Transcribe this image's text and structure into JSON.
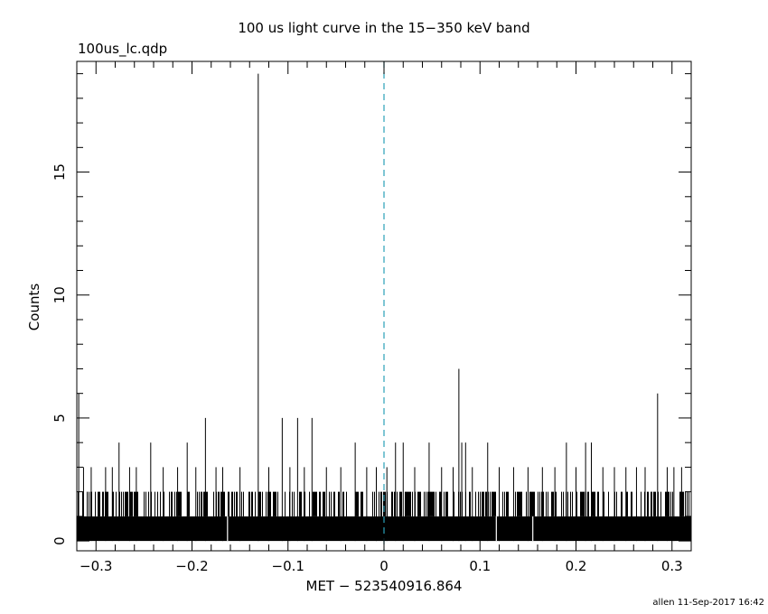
{
  "header": {
    "title": "100 us light curve in the 15−350 keV band",
    "file_label": "100us_lc.qdp"
  },
  "footer": {
    "stamp": "allen 11-Sep-2017 16:42"
  },
  "chart_data": {
    "type": "line",
    "title": "100 us light curve in the 15−350 keV band",
    "xlabel": "MET − 523540916.864",
    "ylabel": "Counts",
    "xlim": [
      -0.32,
      0.32
    ],
    "ylim": [
      -0.4,
      19.5
    ],
    "x_ticks": [
      -0.3,
      -0.2,
      -0.1,
      0,
      0.1,
      0.2,
      0.3
    ],
    "x_tick_labels": [
      "−0.3",
      "−0.2",
      "−0.1",
      "0",
      "0.1",
      "0.2",
      "0.3"
    ],
    "y_ticks": [
      0,
      5,
      10,
      15
    ],
    "y_tick_labels": [
      "0",
      "5",
      "10",
      "15"
    ],
    "bin_width": 0.0001,
    "reference_line": {
      "x": 0,
      "style": "dashed",
      "color": "#2aa0b8"
    },
    "series": [
      {
        "values_description_free": true,
        "baseline": [
          0,
          1
        ],
        "peaks": [
          {
            "x": -0.318,
            "y": 6
          },
          {
            "x": -0.313,
            "y": 3
          },
          {
            "x": -0.305,
            "y": 3
          },
          {
            "x": -0.29,
            "y": 3
          },
          {
            "x": -0.283,
            "y": 3
          },
          {
            "x": -0.276,
            "y": 4
          },
          {
            "x": -0.265,
            "y": 3
          },
          {
            "x": -0.258,
            "y": 3
          },
          {
            "x": -0.243,
            "y": 4
          },
          {
            "x": -0.23,
            "y": 3
          },
          {
            "x": -0.215,
            "y": 3
          },
          {
            "x": -0.205,
            "y": 4
          },
          {
            "x": -0.196,
            "y": 3
          },
          {
            "x": -0.186,
            "y": 5
          },
          {
            "x": -0.175,
            "y": 3
          },
          {
            "x": -0.168,
            "y": 3
          },
          {
            "x": -0.15,
            "y": 3
          },
          {
            "x": -0.131,
            "y": 19
          },
          {
            "x": -0.12,
            "y": 3
          },
          {
            "x": -0.106,
            "y": 5
          },
          {
            "x": -0.098,
            "y": 3
          },
          {
            "x": -0.09,
            "y": 5
          },
          {
            "x": -0.083,
            "y": 3
          },
          {
            "x": -0.075,
            "y": 5
          },
          {
            "x": -0.06,
            "y": 3
          },
          {
            "x": -0.045,
            "y": 3
          },
          {
            "x": -0.03,
            "y": 4
          },
          {
            "x": -0.018,
            "y": 3
          },
          {
            "x": -0.008,
            "y": 3
          },
          {
            "x": 0.003,
            "y": 3
          },
          {
            "x": 0.012,
            "y": 4
          },
          {
            "x": 0.02,
            "y": 4
          },
          {
            "x": 0.032,
            "y": 3
          },
          {
            "x": 0.047,
            "y": 4
          },
          {
            "x": 0.06,
            "y": 3
          },
          {
            "x": 0.072,
            "y": 3
          },
          {
            "x": 0.078,
            "y": 7
          },
          {
            "x": 0.081,
            "y": 4
          },
          {
            "x": 0.085,
            "y": 4
          },
          {
            "x": 0.092,
            "y": 3
          },
          {
            "x": 0.108,
            "y": 4
          },
          {
            "x": 0.12,
            "y": 3
          },
          {
            "x": 0.135,
            "y": 3
          },
          {
            "x": 0.15,
            "y": 3
          },
          {
            "x": 0.165,
            "y": 3
          },
          {
            "x": 0.178,
            "y": 3
          },
          {
            "x": 0.19,
            "y": 4
          },
          {
            "x": 0.2,
            "y": 3
          },
          {
            "x": 0.21,
            "y": 4
          },
          {
            "x": 0.216,
            "y": 4
          },
          {
            "x": 0.228,
            "y": 3
          },
          {
            "x": 0.24,
            "y": 3
          },
          {
            "x": 0.252,
            "y": 3
          },
          {
            "x": 0.263,
            "y": 3
          },
          {
            "x": 0.272,
            "y": 3
          },
          {
            "x": 0.285,
            "y": 6
          },
          {
            "x": 0.295,
            "y": 3
          },
          {
            "x": 0.302,
            "y": 3
          },
          {
            "x": 0.31,
            "y": 3
          }
        ]
      }
    ]
  }
}
